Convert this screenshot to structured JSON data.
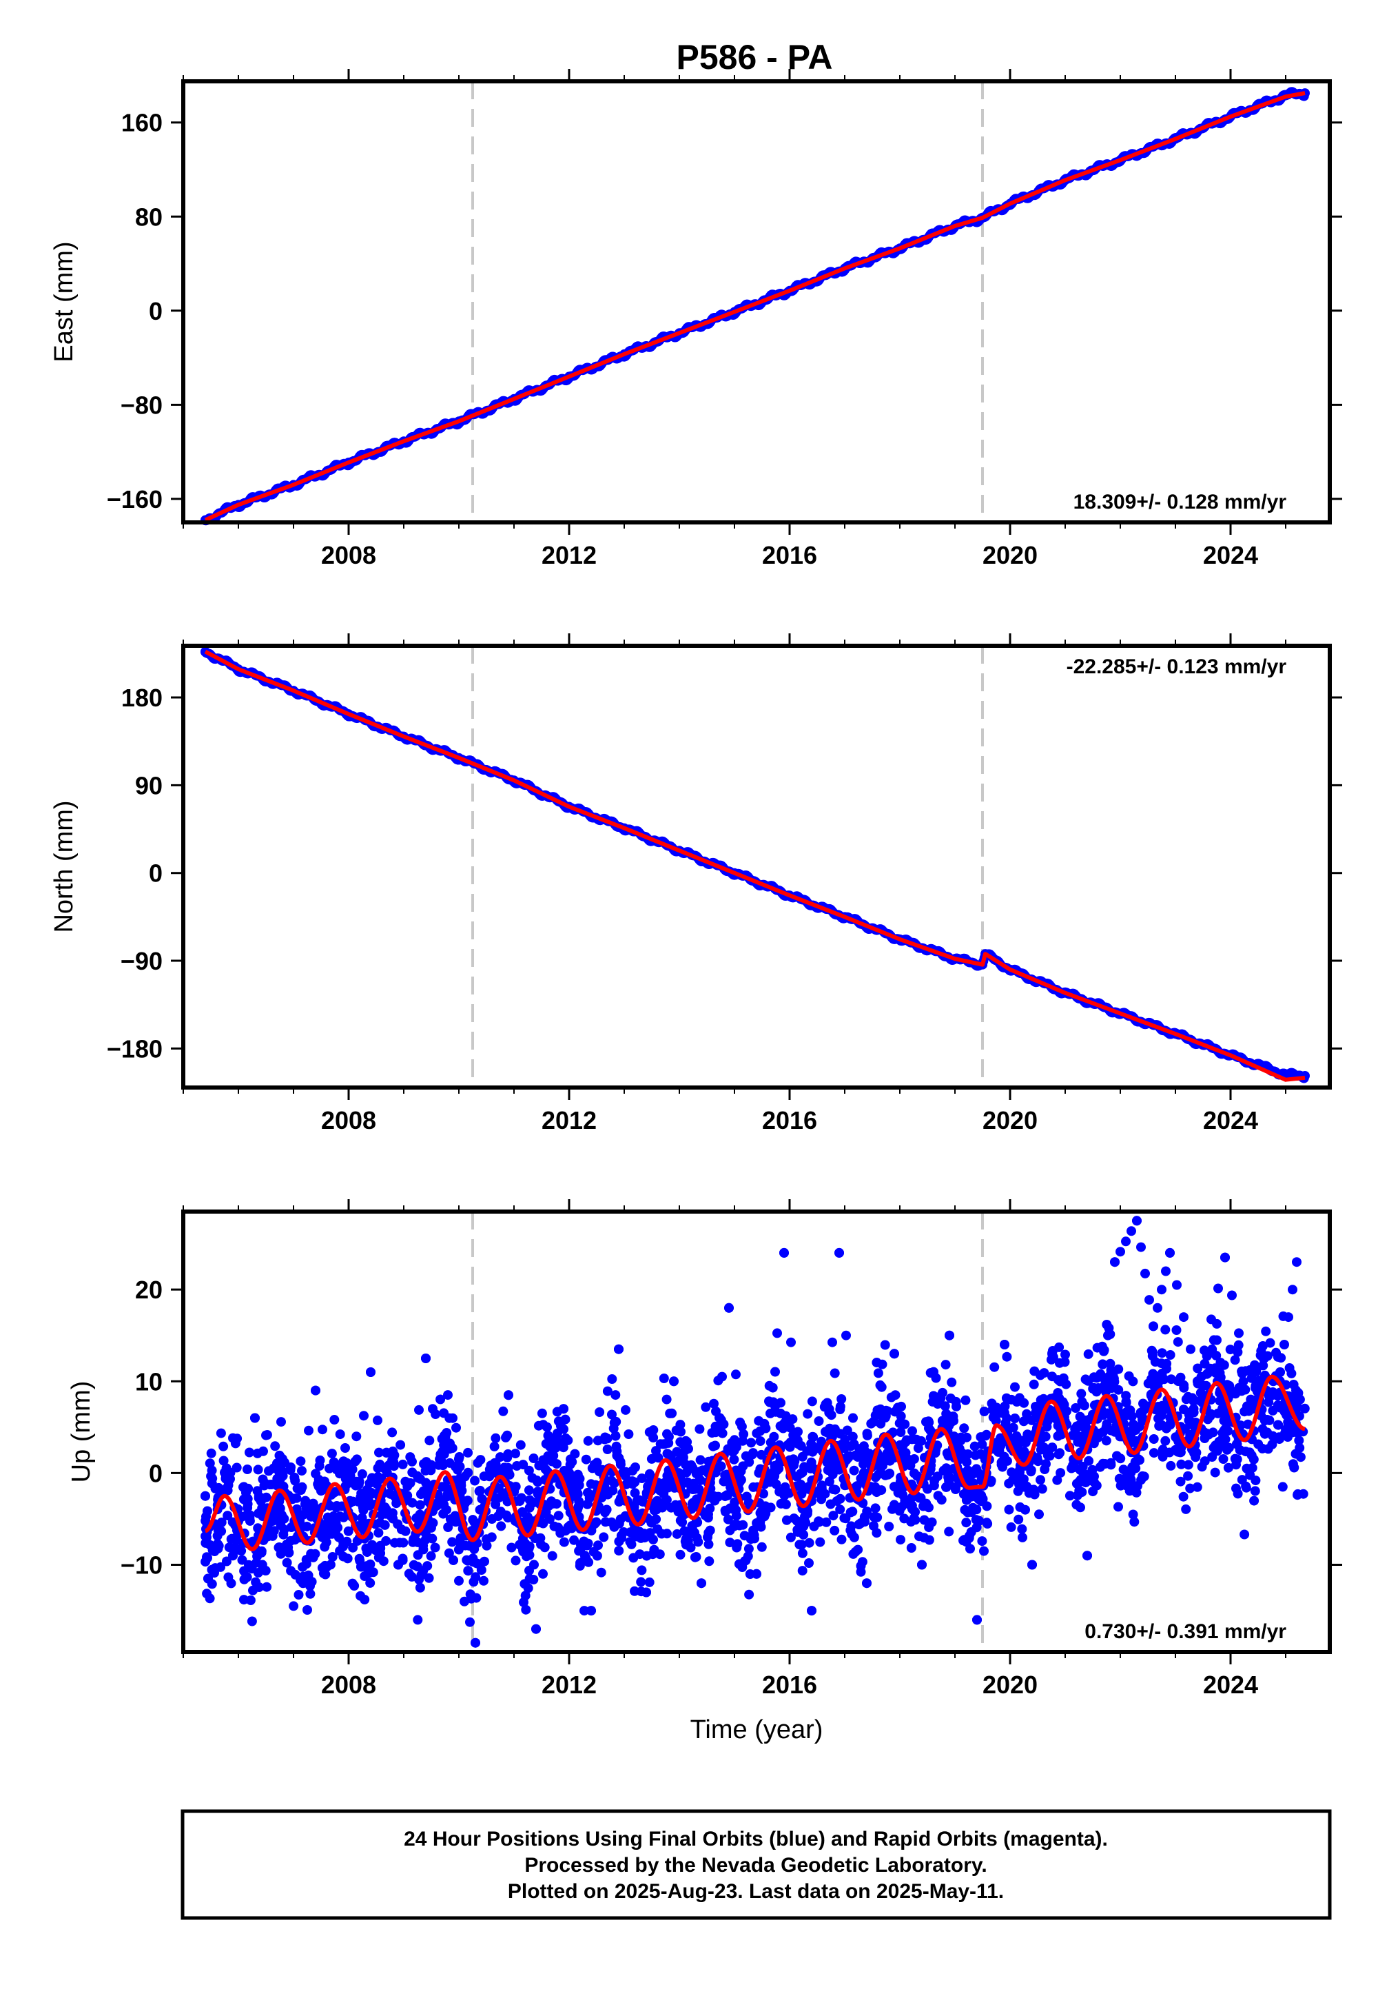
{
  "title": "P586 - PA",
  "footer": {
    "lines": [
      "24 Hour Positions Using Final Orbits (blue) and Rapid Orbits (magenta).",
      "Processed by the Nevada Geodetic Laboratory.",
      "Plotted on 2025-Aug-23. Last data on 2025-May-11."
    ]
  },
  "colors": {
    "final_orbits": "#0000ff",
    "rapid_orbits": "#ff00ff",
    "model": "#ff0000",
    "event_lines": "#c8c8c8"
  },
  "chart_data": [
    {
      "type": "scatter",
      "ylabel": "East (mm)",
      "xlabel": "",
      "xlim": [
        2005.0,
        2025.8
      ],
      "ylim": [
        -180,
        195
      ],
      "xticks": [
        "2008",
        "2012",
        "2016",
        "2020",
        "2024"
      ],
      "yticks": [
        "-160",
        "-80",
        "0",
        "80",
        "160"
      ],
      "event_lines_x": [
        2010.25,
        2019.5
      ],
      "rate_label": "18.309+/- 0.128 mm/yr",
      "rate_position": "bottom-right",
      "series": [
        {
          "style": "points",
          "x": [
            2005.4,
            2006.0,
            2007.0,
            2008.0,
            2009.0,
            2010.0,
            2011.0,
            2012.0,
            2013.0,
            2014.0,
            2015.0,
            2016.0,
            2017.0,
            2018.0,
            2019.0,
            2019.5,
            2020.0,
            2021.0,
            2022.0,
            2023.0,
            2024.0,
            2025.0,
            2025.35
          ],
          "y": [
            -178,
            -165,
            -148,
            -129,
            -111,
            -94,
            -75,
            -56,
            -37,
            -19,
            -1,
            17,
            36,
            53,
            72,
            79,
            91,
            111,
            128,
            146,
            165,
            183,
            185
          ]
        },
        {
          "style": "line",
          "x": [
            2005.4,
            2006.0,
            2007.0,
            2008.0,
            2009.0,
            2010.0,
            2011.0,
            2012.0,
            2013.0,
            2014.0,
            2015.0,
            2016.0,
            2017.0,
            2018.0,
            2019.0,
            2019.5,
            2020.0,
            2021.0,
            2022.0,
            2023.0,
            2024.0,
            2025.0,
            2025.35
          ],
          "y": [
            -178,
            -165,
            -148,
            -129,
            -111,
            -94,
            -75,
            -56,
            -37,
            -19,
            -1,
            17,
            36,
            53,
            72,
            79,
            91,
            111,
            128,
            146,
            165,
            182,
            185
          ]
        }
      ]
    },
    {
      "type": "scatter",
      "ylabel": "North (mm)",
      "xlabel": "",
      "xlim": [
        2005.0,
        2025.8
      ],
      "ylim": [
        -220,
        233
      ],
      "xticks": [
        "2008",
        "2012",
        "2016",
        "2020",
        "2024"
      ],
      "yticks": [
        "-180",
        "-90",
        "0",
        "90",
        "180"
      ],
      "event_lines_x": [
        2010.25,
        2019.5
      ],
      "rate_label": "-22.285+/- 0.123 mm/yr",
      "rate_position": "top-right",
      "series": [
        {
          "style": "points",
          "x": [
            2005.4,
            2006.0,
            2007.0,
            2008.0,
            2009.0,
            2010.0,
            2011.0,
            2012.0,
            2013.0,
            2014.0,
            2015.0,
            2016.0,
            2017.0,
            2018.0,
            2019.0,
            2019.5,
            2019.55,
            2020.0,
            2021.0,
            2022.0,
            2023.0,
            2024.0,
            2025.0,
            2025.35
          ],
          "y": [
            227,
            209,
            187,
            163,
            140,
            118,
            95,
            68,
            46,
            23,
            0,
            -23,
            -45,
            -68,
            -88,
            -94,
            -83,
            -99,
            -123,
            -144,
            -165,
            -187,
            -207,
            -208
          ]
        },
        {
          "style": "line",
          "x": [
            2005.4,
            2006.0,
            2007.0,
            2008.0,
            2009.0,
            2010.0,
            2011.0,
            2012.0,
            2013.0,
            2014.0,
            2015.0,
            2016.0,
            2017.0,
            2018.0,
            2019.0,
            2019.5,
            2019.55,
            2020.0,
            2021.0,
            2022.0,
            2023.0,
            2024.0,
            2025.0,
            2025.35
          ],
          "y": [
            227,
            209,
            187,
            163,
            140,
            118,
            95,
            68,
            46,
            23,
            0,
            -23,
            -45,
            -68,
            -88,
            -94,
            -83,
            -99,
            -123,
            -144,
            -165,
            -187,
            -212,
            -210
          ]
        }
      ]
    },
    {
      "type": "scatter",
      "ylabel": "Up (mm)",
      "xlabel": "Time (year)",
      "xlim": [
        2005.0,
        2025.8
      ],
      "ylim": [
        -19.5,
        28.5
      ],
      "xticks": [
        "2008",
        "2012",
        "2016",
        "2020",
        "2024"
      ],
      "yticks": [
        "-10",
        "0",
        "10",
        "20"
      ],
      "event_lines_x": [
        2010.25,
        2019.5
      ],
      "rate_label": "0.730+/- 0.391 mm/yr",
      "rate_position": "bottom-right",
      "series": [
        {
          "style": "points",
          "x": [
            2005.4,
            2005.45,
            2005.9,
            2006.3,
            2006.9,
            2007.4,
            2007.9,
            2008.4,
            2008.9,
            2009.4,
            2009.9,
            2010.3,
            2010.9,
            2011.4,
            2011.9,
            2012.4,
            2012.9,
            2013.4,
            2013.9,
            2014.4,
            2014.9,
            2015.4,
            2015.9,
            2016.4,
            2016.9,
            2017.4,
            2017.9,
            2018.4,
            2018.9,
            2019.4,
            2019.9,
            2020.4,
            2020.9,
            2021.4,
            2021.9,
            2022.3,
            2022.6,
            2022.9,
            2023.4,
            2023.9,
            2024.4,
            2024.9,
            2025.2
          ],
          "y": [
            -2.5,
            -11.5,
            -9,
            6,
            -8.5,
            9,
            -8,
            11,
            -10,
            12.5,
            -9.5,
            -18.5,
            8.5,
            -17,
            7,
            -15,
            13.5,
            -13,
            10,
            -12,
            18,
            -11,
            24,
            -15,
            24,
            -12,
            13,
            -10,
            15,
            -16,
            14,
            -10,
            12,
            -9,
            23,
            27.5,
            16,
            24,
            10,
            23.5,
            7,
            11,
            23
          ]
        },
        {
          "style": "line",
          "x": [
            2005.4,
            2005.75,
            2006.25,
            2006.75,
            2007.25,
            2007.75,
            2008.25,
            2008.75,
            2009.25,
            2009.75,
            2010.25,
            2010.75,
            2011.25,
            2011.75,
            2012.25,
            2012.75,
            2013.25,
            2013.75,
            2014.25,
            2014.75,
            2015.25,
            2015.75,
            2016.25,
            2016.75,
            2017.25,
            2017.75,
            2018.25,
            2018.75,
            2019.25,
            2019.5,
            2019.75,
            2020.25,
            2020.75,
            2021.25,
            2021.75,
            2022.25,
            2022.75,
            2023.25,
            2023.75,
            2024.25,
            2024.75,
            2025.35
          ],
          "y": [
            -6.3,
            -2.5,
            -8.3,
            -1.9,
            -7.6,
            -1.2,
            -7.0,
            -0.6,
            -6.4,
            0.1,
            -7.3,
            -0.4,
            -6.8,
            0.2,
            -6.2,
            0.8,
            -5.6,
            1.4,
            -4.9,
            2.1,
            -4.2,
            2.8,
            -3.6,
            3.5,
            -2.9,
            4.2,
            -2.2,
            4.8,
            -1.6,
            -1.5,
            5.2,
            0.9,
            7.8,
            1.6,
            8.4,
            2.2,
            9.1,
            2.9,
            9.8,
            3.6,
            10.5,
            4.8
          ]
        }
      ]
    }
  ]
}
